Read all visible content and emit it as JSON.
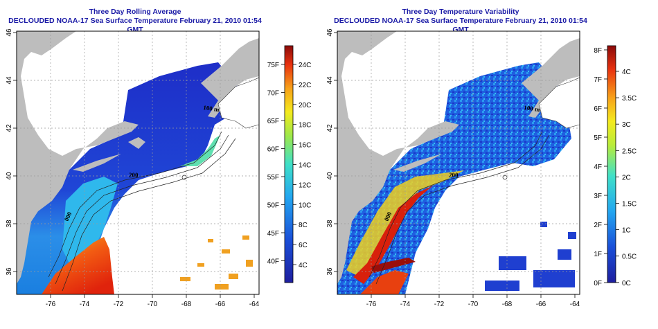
{
  "left_panel": {
    "title_line1": "Three Day Rolling Average",
    "title_line2": "DECLOUDED NOAA-17 Sea Surface Temperature February 21, 2010 01:54 GMT",
    "colorbar_f": [
      "75F",
      "70F",
      "65F",
      "60F",
      "55F",
      "50F",
      "45F",
      "40F"
    ],
    "colorbar_c": [
      "24C",
      "22C",
      "20C",
      "18C",
      "16C",
      "14C",
      "12C",
      "10C",
      "8C",
      "6C",
      "4C"
    ],
    "contour_labels": [
      "100 m",
      "200",
      "000"
    ]
  },
  "right_panel": {
    "title_line1": "Three Day Temperature Variability",
    "title_line2": "DECLOUDED NOAA-17 Sea Surface Temperature February 21, 2010 01:54 GMT",
    "colorbar_f": [
      "8F",
      "7F",
      "6F",
      "5F",
      "4F",
      "3F",
      "2F",
      "1F",
      "0F"
    ],
    "colorbar_c": [
      "4C",
      "3.5C",
      "3C",
      "2.5C",
      "2C",
      "1.5C",
      "1C",
      "0.5C",
      "0C"
    ],
    "contour_labels": [
      "100 m",
      "200",
      "000"
    ]
  },
  "axes": {
    "x_ticks": [
      "-76",
      "-74",
      "-72",
      "-70",
      "-68",
      "-66",
      "-64"
    ],
    "y_ticks": [
      "46",
      "44",
      "42",
      "40",
      "38",
      "36"
    ]
  },
  "colors": {
    "title": "#1a1aa6",
    "land": "#bdbdbd",
    "no_data": "#ffffff",
    "grid": "#aaaaaa"
  }
}
